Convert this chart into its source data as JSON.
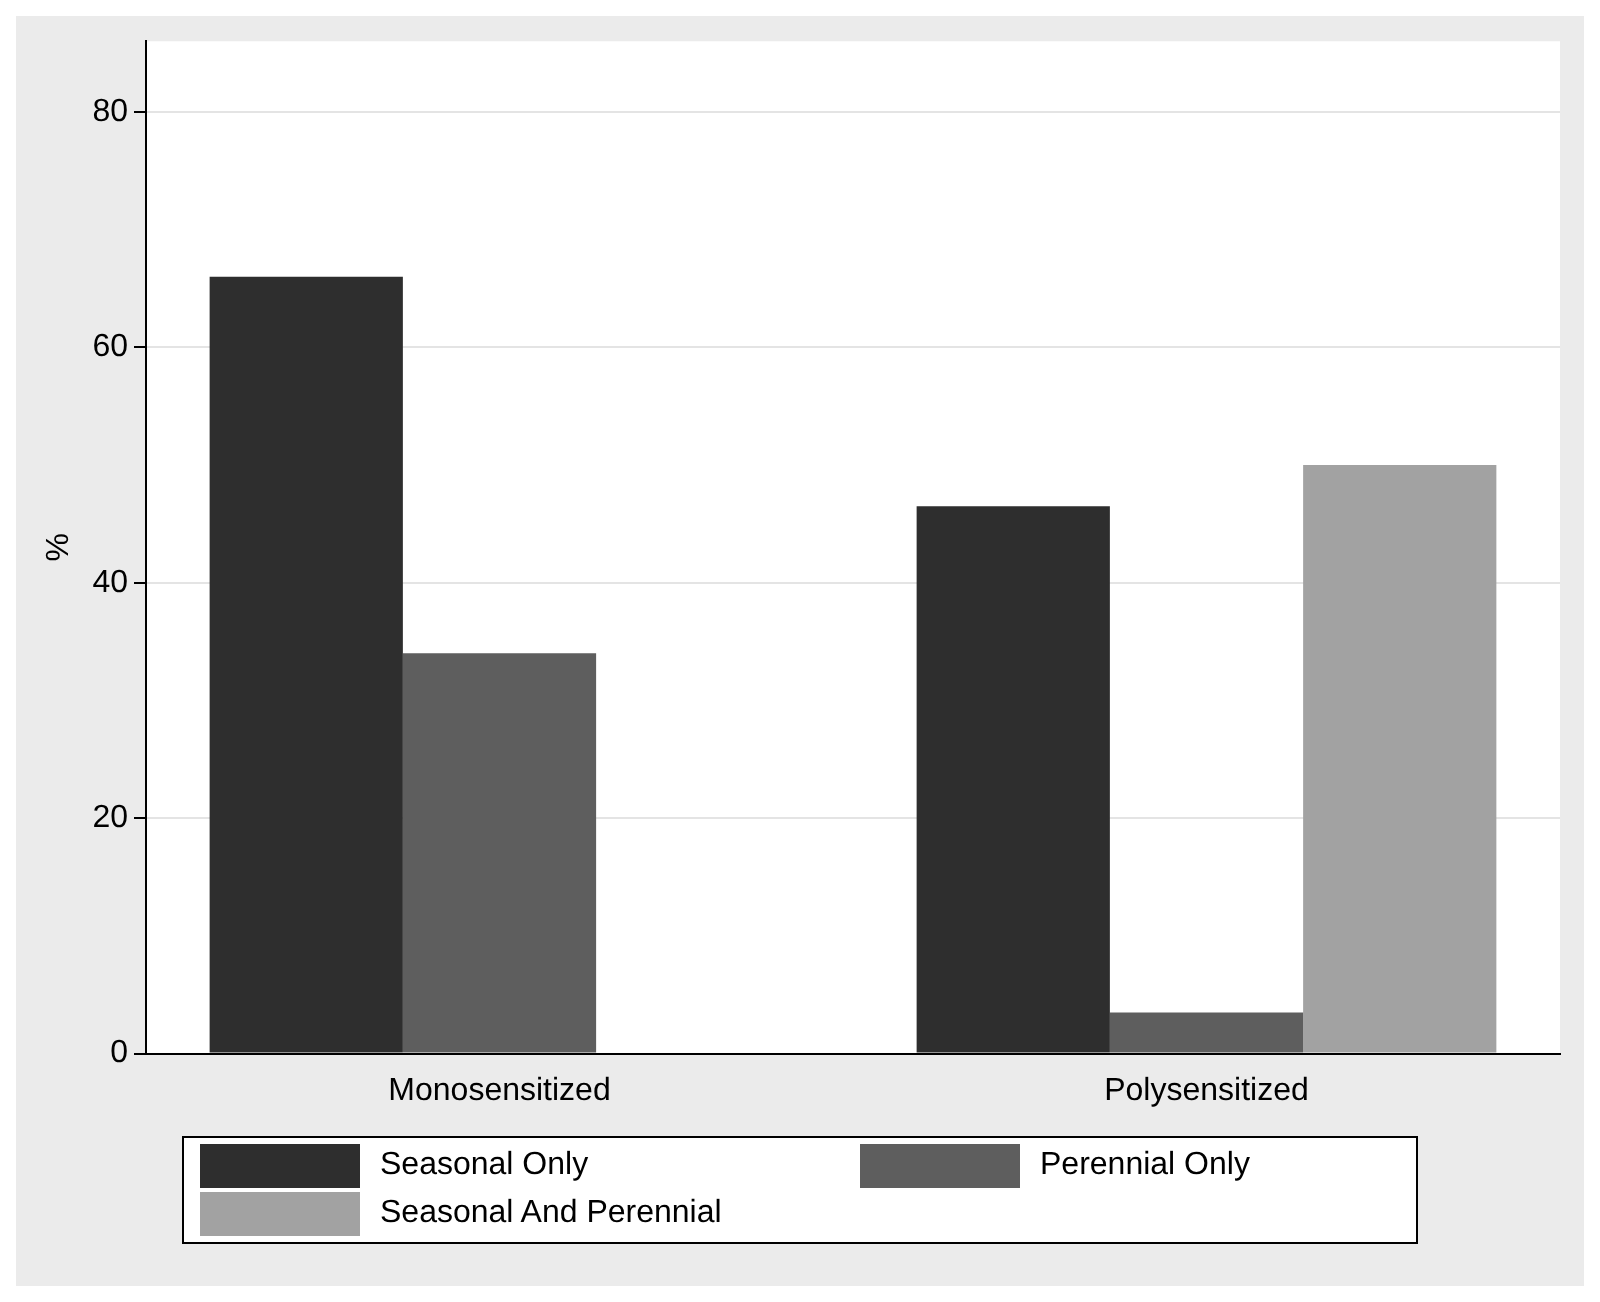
{
  "chart_data": {
    "type": "bar",
    "ylabel": "%",
    "categories": [
      "Monosensitized",
      "Polysensitized"
    ],
    "series": [
      {
        "name": "Seasonal Only",
        "color": "#2e2e2e",
        "values": [
          66,
          46.5
        ]
      },
      {
        "name": "Perennial Only",
        "color": "#5e5e5e",
        "values": [
          34,
          3.5
        ]
      },
      {
        "name": "Seasonal And Perennial",
        "color": "#a2a2a2",
        "values": [
          null,
          50
        ]
      }
    ],
    "ylim": [
      0,
      86
    ],
    "yticks": [
      0,
      20,
      40,
      60,
      80
    ],
    "grid": "y",
    "legend": "bottom"
  }
}
